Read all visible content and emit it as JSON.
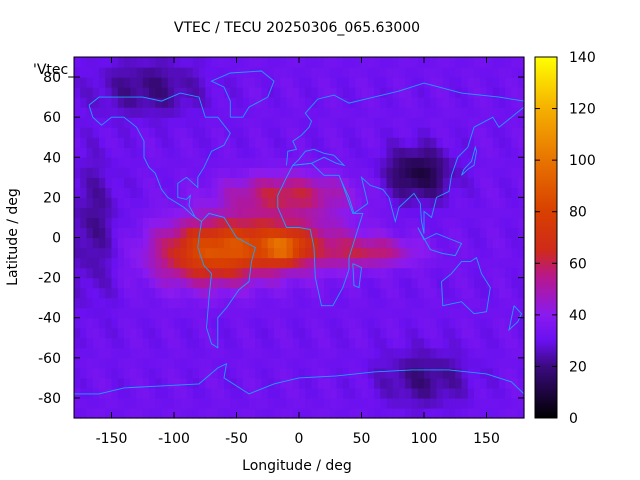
{
  "chart_data": {
    "type": "heatmap",
    "title": "VTEC / TECU 20250306_065.63000",
    "xlabel": "Longitude / deg",
    "ylabel": "Latitude / deg",
    "key_label": "'Vtec_",
    "xlim": [
      -180,
      180
    ],
    "ylim": [
      -90,
      90
    ],
    "x_ticks": [
      -150,
      -100,
      -50,
      0,
      50,
      100,
      150
    ],
    "x_tick_labels": [
      "-150",
      "-100",
      "-50",
      "0",
      "50",
      "100",
      "150"
    ],
    "y_ticks": [
      -80,
      -60,
      -40,
      -20,
      0,
      20,
      40,
      60,
      80
    ],
    "y_tick_labels": [
      "-80",
      "-60",
      "-40",
      "-20",
      "0",
      "20",
      "40",
      "60",
      "80"
    ],
    "colorbar": {
      "range": [
        0,
        140
      ],
      "ticks": [
        0,
        20,
        40,
        60,
        80,
        100,
        120,
        140
      ],
      "tick_labels": [
        "0",
        "20",
        "40",
        "60",
        "80",
        "100",
        "120",
        "140"
      ],
      "stops": [
        {
          "v": 0,
          "color": "#000000"
        },
        {
          "v": 20,
          "color": "#3b0a7f"
        },
        {
          "v": 30,
          "color": "#6a10f0"
        },
        {
          "v": 40,
          "color": "#8a1af0"
        },
        {
          "v": 55,
          "color": "#b8188a"
        },
        {
          "v": 65,
          "color": "#cf2a1a"
        },
        {
          "v": 80,
          "color": "#d84000"
        },
        {
          "v": 100,
          "color": "#e87400"
        },
        {
          "v": 120,
          "color": "#f5b000"
        },
        {
          "v": 140,
          "color": "#ffff00"
        }
      ]
    },
    "field_model": {
      "background": 32,
      "features": [
        {
          "name": "equatorial-anomaly-south-america",
          "lon": -75,
          "lat": -8,
          "amp": 40,
          "sigma_lon": 30,
          "sigma_lat": 11
        },
        {
          "name": "equatorial-anomaly-africa",
          "lon": -20,
          "lat": -3,
          "amp": 38,
          "sigma_lon": 40,
          "sigma_lat": 10
        },
        {
          "name": "anomaly-crest-north",
          "lon": -10,
          "lat": 22,
          "amp": 28,
          "sigma_lon": 35,
          "sigma_lat": 7
        },
        {
          "name": "peak-south-atlantic",
          "lon": -12,
          "lat": -5,
          "amp": 28,
          "sigma_lon": 10,
          "sigma_lat": 5
        },
        {
          "name": "indian-ocean-tongue",
          "lon": 60,
          "lat": -7,
          "amp": 22,
          "sigma_lon": 25,
          "sigma_lat": 5
        },
        {
          "name": "low-central-asia",
          "lon": 95,
          "lat": 32,
          "amp": -22,
          "sigma_lon": 18,
          "sigma_lat": 9
        },
        {
          "name": "low-north-pacific",
          "lon": -165,
          "lat": 5,
          "amp": -10,
          "sigma_lon": 15,
          "sigma_lat": 25
        },
        {
          "name": "low-north-america",
          "lon": -120,
          "lat": 75,
          "amp": -12,
          "sigma_lon": 30,
          "sigma_lat": 10
        },
        {
          "name": "low-south-pacific",
          "lon": 100,
          "lat": -70,
          "amp": -12,
          "sigma_lon": 25,
          "sigma_lat": 10
        }
      ]
    },
    "coastlines": [
      {
        "name": "north-america",
        "lonlat": [
          [
            -168,
            66
          ],
          [
            -160,
            70
          ],
          [
            -140,
            70
          ],
          [
            -125,
            70
          ],
          [
            -110,
            68
          ],
          [
            -95,
            72
          ],
          [
            -80,
            70
          ],
          [
            -75,
            60
          ],
          [
            -65,
            60
          ],
          [
            -55,
            52
          ],
          [
            -60,
            46
          ],
          [
            -70,
            43
          ],
          [
            -76,
            35
          ],
          [
            -81,
            30
          ],
          [
            -81,
            25
          ],
          [
            -90,
            30
          ],
          [
            -97,
            27
          ],
          [
            -97,
            20
          ],
          [
            -90,
            19
          ],
          [
            -87,
            21
          ],
          [
            -88,
            16
          ],
          [
            -83,
            10
          ],
          [
            -78,
            8
          ],
          [
            -85,
            11
          ],
          [
            -92,
            15
          ],
          [
            -105,
            20
          ],
          [
            -110,
            24
          ],
          [
            -115,
            32
          ],
          [
            -120,
            35
          ],
          [
            -124,
            40
          ],
          [
            -124,
            48
          ],
          [
            -130,
            55
          ],
          [
            -140,
            60
          ],
          [
            -150,
            60
          ],
          [
            -158,
            56
          ],
          [
            -165,
            60
          ],
          [
            -168,
            66
          ]
        ]
      },
      {
        "name": "greenland",
        "lonlat": [
          [
            -55,
            60
          ],
          [
            -45,
            60
          ],
          [
            -40,
            65
          ],
          [
            -25,
            70
          ],
          [
            -20,
            78
          ],
          [
            -30,
            83
          ],
          [
            -55,
            82
          ],
          [
            -70,
            78
          ],
          [
            -60,
            75
          ],
          [
            -55,
            68
          ],
          [
            -55,
            60
          ]
        ]
      },
      {
        "name": "south-america",
        "lonlat": [
          [
            -78,
            8
          ],
          [
            -72,
            12
          ],
          [
            -60,
            10
          ],
          [
            -50,
            0
          ],
          [
            -35,
            -5
          ],
          [
            -38,
            -12
          ],
          [
            -40,
            -22
          ],
          [
            -48,
            -26
          ],
          [
            -58,
            -35
          ],
          [
            -65,
            -40
          ],
          [
            -65,
            -55
          ],
          [
            -70,
            -53
          ],
          [
            -74,
            -45
          ],
          [
            -72,
            -30
          ],
          [
            -70,
            -18
          ],
          [
            -76,
            -14
          ],
          [
            -81,
            -5
          ],
          [
            -80,
            0
          ],
          [
            -78,
            8
          ]
        ]
      },
      {
        "name": "europe-asia",
        "lonlat": [
          [
            -10,
            36
          ],
          [
            -9,
            43
          ],
          [
            -2,
            44
          ],
          [
            -5,
            48
          ],
          [
            2,
            51
          ],
          [
            8,
            55
          ],
          [
            10,
            58
          ],
          [
            5,
            62
          ],
          [
            15,
            69
          ],
          [
            28,
            71
          ],
          [
            40,
            67
          ],
          [
            60,
            70
          ],
          [
            80,
            73
          ],
          [
            100,
            77
          ],
          [
            130,
            72
          ],
          [
            160,
            70
          ],
          [
            180,
            68
          ]
        ]
      },
      {
        "name": "asia-east",
        "lonlat": [
          [
            180,
            65
          ],
          [
            170,
            60
          ],
          [
            160,
            55
          ],
          [
            155,
            60
          ],
          [
            140,
            55
          ],
          [
            135,
            45
          ],
          [
            127,
            40
          ],
          [
            122,
            31
          ],
          [
            120,
            23
          ],
          [
            110,
            20
          ],
          [
            106,
            10
          ],
          [
            100,
            13
          ],
          [
            100,
            2
          ],
          [
            98,
            8
          ],
          [
            97,
            17
          ],
          [
            92,
            22
          ],
          [
            80,
            15
          ],
          [
            77,
            8
          ],
          [
            72,
            20
          ],
          [
            67,
            24
          ],
          [
            57,
            26
          ],
          [
            50,
            30
          ],
          [
            55,
            17
          ],
          [
            44,
            12
          ],
          [
            40,
            20
          ],
          [
            34,
            28
          ]
        ]
      },
      {
        "name": "mediterranean",
        "lonlat": [
          [
            -5,
            36
          ],
          [
            10,
            37
          ],
          [
            20,
            40
          ],
          [
            30,
            37
          ],
          [
            36,
            36
          ],
          [
            28,
            41
          ],
          [
            20,
            42
          ],
          [
            12,
            44
          ],
          [
            5,
            43
          ],
          [
            0,
            39
          ],
          [
            -5,
            36
          ]
        ]
      },
      {
        "name": "africa",
        "lonlat": [
          [
            -17,
            15
          ],
          [
            -17,
            21
          ],
          [
            -10,
            30
          ],
          [
            -5,
            36
          ],
          [
            10,
            37
          ],
          [
            20,
            31
          ],
          [
            32,
            31
          ],
          [
            34,
            28
          ],
          [
            43,
            12
          ],
          [
            51,
            12
          ],
          [
            45,
            0
          ],
          [
            40,
            -10
          ],
          [
            40,
            -16
          ],
          [
            35,
            -25
          ],
          [
            27,
            -34
          ],
          [
            18,
            -34
          ],
          [
            13,
            -20
          ],
          [
            12,
            -5
          ],
          [
            9,
            4
          ],
          [
            0,
            5
          ],
          [
            -10,
            5
          ],
          [
            -17,
            15
          ]
        ]
      },
      {
        "name": "madagascar",
        "lonlat": [
          [
            43,
            -13
          ],
          [
            50,
            -15
          ],
          [
            48,
            -25
          ],
          [
            44,
            -24
          ],
          [
            43,
            -13
          ]
        ]
      },
      {
        "name": "australia",
        "lonlat": [
          [
            114,
            -22
          ],
          [
            122,
            -18
          ],
          [
            130,
            -12
          ],
          [
            137,
            -12
          ],
          [
            142,
            -10
          ],
          [
            146,
            -18
          ],
          [
            153,
            -25
          ],
          [
            150,
            -37
          ],
          [
            140,
            -38
          ],
          [
            130,
            -32
          ],
          [
            115,
            -34
          ],
          [
            114,
            -22
          ]
        ]
      },
      {
        "name": "new-zealand",
        "lonlat": [
          [
            172,
            -34
          ],
          [
            178,
            -38
          ],
          [
            175,
            -42
          ],
          [
            168,
            -46
          ],
          [
            172,
            -34
          ]
        ]
      },
      {
        "name": "japan",
        "lonlat": [
          [
            130,
            31
          ],
          [
            135,
            34
          ],
          [
            140,
            36
          ],
          [
            142,
            43
          ],
          [
            141,
            45
          ],
          [
            138,
            38
          ],
          [
            132,
            34
          ],
          [
            130,
            31
          ]
        ]
      },
      {
        "name": "indonesia",
        "lonlat": [
          [
            95,
            5
          ],
          [
            105,
            -6
          ],
          [
            115,
            -8
          ],
          [
            125,
            -9
          ],
          [
            130,
            -3
          ],
          [
            118,
            0
          ],
          [
            110,
            2
          ],
          [
            100,
            -1
          ],
          [
            95,
            5
          ]
        ]
      },
      {
        "name": "antarctica",
        "lonlat": [
          [
            -180,
            -78
          ],
          [
            -160,
            -78
          ],
          [
            -140,
            -75
          ],
          [
            -110,
            -74
          ],
          [
            -80,
            -73
          ],
          [
            -65,
            -65
          ],
          [
            -58,
            -63
          ],
          [
            -60,
            -70
          ],
          [
            -40,
            -78
          ],
          [
            -20,
            -73
          ],
          [
            0,
            -70
          ],
          [
            30,
            -69
          ],
          [
            60,
            -67
          ],
          [
            90,
            -66
          ],
          [
            120,
            -66
          ],
          [
            150,
            -68
          ],
          [
            170,
            -72
          ],
          [
            180,
            -78
          ]
        ]
      }
    ]
  }
}
